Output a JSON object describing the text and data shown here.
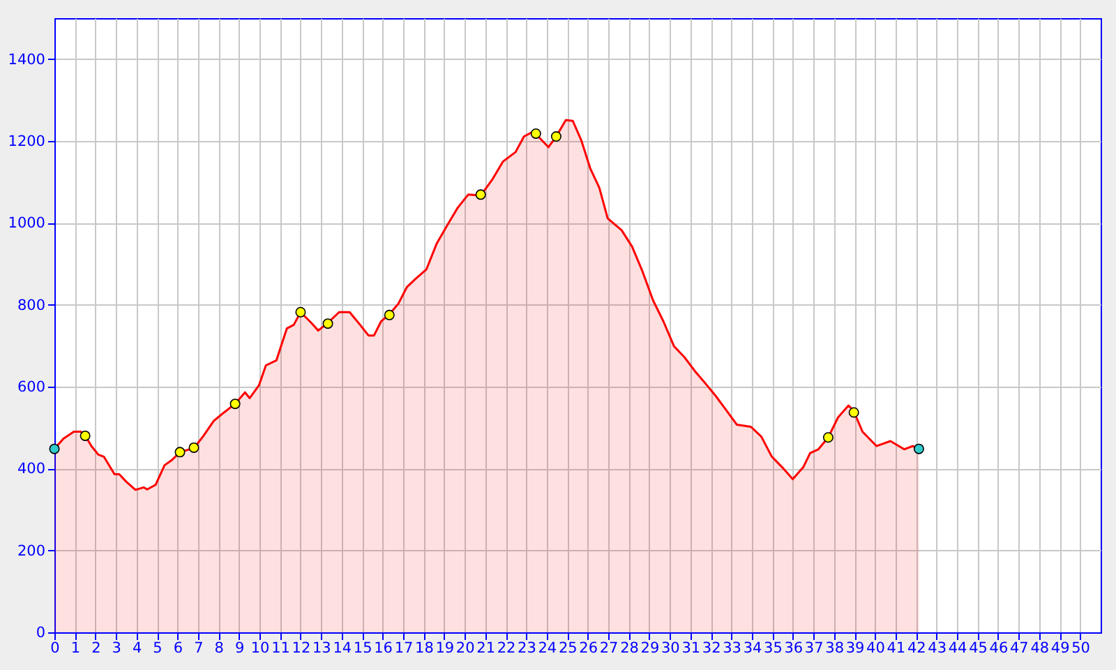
{
  "chart_data": {
    "type": "area",
    "grid": true,
    "xlim": [
      0,
      51
    ],
    "ylim": [
      0,
      1500
    ],
    "xticks": [
      0,
      1,
      2,
      3,
      4,
      5,
      6,
      7,
      8,
      9,
      10,
      11,
      12,
      13,
      14,
      15,
      16,
      17,
      18,
      19,
      20,
      21,
      22,
      23,
      24,
      25,
      26,
      27,
      28,
      29,
      30,
      31,
      32,
      33,
      34,
      35,
      36,
      37,
      38,
      39,
      40,
      41,
      42,
      43,
      44,
      45,
      46,
      47,
      48,
      49,
      50
    ],
    "yticks": [
      0,
      200,
      400,
      600,
      800,
      1000,
      1200,
      1400
    ],
    "series": [
      {
        "color": "#ff0000",
        "x": [
          0,
          0.44,
          0.95,
          1.29,
          1.53,
          1.8,
          2.14,
          2.41,
          2.93,
          3.16,
          3.5,
          3.95,
          4.35,
          4.52,
          4.93,
          5.37,
          5.71,
          6.12,
          6.8,
          7.24,
          7.76,
          8.27,
          8.81,
          9.29,
          9.52,
          9.97,
          10.31,
          10.82,
          11.33,
          11.67,
          12.0,
          12.52,
          12.86,
          13.33,
          13.88,
          14.39,
          14.9,
          15.31,
          15.58,
          15.92,
          16.33,
          16.77,
          17.18,
          17.62,
          18.13,
          18.64,
          19.15,
          19.66,
          20.17,
          20.78,
          21.36,
          21.87,
          22.48,
          22.89,
          23.23,
          23.47,
          24.08,
          24.46,
          24.93,
          25.27,
          25.68,
          26.12,
          26.56,
          26.97,
          27.65,
          28.16,
          28.67,
          29.18,
          29.69,
          30.2,
          30.71,
          31.22,
          31.73,
          32.24,
          32.76,
          33.27,
          33.95,
          34.46,
          34.97,
          35.48,
          35.99,
          36.5,
          36.84,
          37.24,
          37.72,
          38.2,
          38.71,
          38.95,
          39.39,
          40.07,
          40.75,
          41.43,
          41.84,
          42.14
        ],
        "values": [
          448,
          473,
          490,
          490,
          478,
          455,
          434,
          429,
          386,
          386,
          368,
          348,
          354,
          349,
          360,
          408,
          420,
          440,
          450,
          478,
          516,
          537,
          558,
          586,
          572,
          603,
          652,
          664,
          742,
          751,
          782,
          756,
          737,
          756,
          782,
          782,
          751,
          725,
          725,
          759,
          777,
          803,
          843,
          864,
          886,
          950,
          994,
          1037,
          1069,
          1067,
          1107,
          1150,
          1173,
          1211,
          1220,
          1217,
          1185,
          1211,
          1251,
          1249,
          1202,
          1133,
          1086,
          1011,
          982,
          942,
          881,
          811,
          759,
          699,
          672,
          638,
          608,
          577,
          542,
          507,
          502,
          478,
          429,
          403,
          374,
          403,
          438,
          447,
          476,
          525,
          554,
          542,
          490,
          455,
          467,
          447,
          455,
          448
        ]
      },
      {
        "type": "scatter",
        "marker": "circle",
        "color": "#ffff00",
        "x": [
          1.5,
          6.12,
          6.8,
          8.81,
          12.0,
          13.33,
          16.33,
          20.78,
          23.47,
          24.46,
          37.72,
          38.97
        ],
        "values": [
          480,
          440,
          451,
          558,
          782,
          754,
          775,
          1069,
          1218,
          1211,
          476,
          537
        ]
      },
      {
        "type": "scatter",
        "marker": "circle",
        "color": "#33cccc",
        "x": [
          0,
          42.14
        ],
        "values": [
          448,
          448
        ]
      }
    ]
  }
}
